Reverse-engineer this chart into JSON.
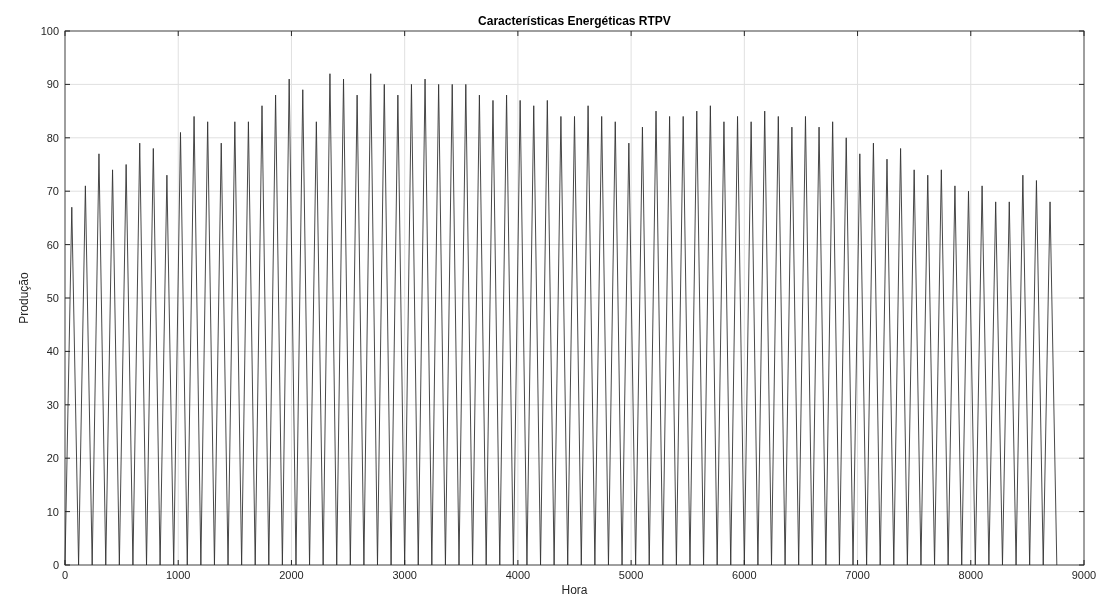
{
  "chart_data": {
    "type": "line",
    "title": "Características Energéticas RTPV",
    "xlabel": "Hora",
    "ylabel": "Produção",
    "xlim": [
      0,
      9000
    ],
    "ylim": [
      0,
      100
    ],
    "xticks": [
      0,
      1000,
      2000,
      3000,
      4000,
      5000,
      6000,
      7000,
      8000,
      9000
    ],
    "yticks": [
      0,
      10,
      20,
      30,
      40,
      50,
      60,
      70,
      80,
      90,
      100
    ],
    "grid": true,
    "series": [
      {
        "color": "#333333",
        "x": [
          0,
          60,
          120,
          180,
          240,
          300,
          360,
          420,
          480,
          540,
          600,
          660,
          720,
          780,
          840,
          900,
          960,
          1020,
          1080,
          1140,
          1200,
          1260,
          1320,
          1380,
          1440,
          1500,
          1560,
          1620,
          1680,
          1740,
          1800,
          1860,
          1920,
          1980,
          2040,
          2100,
          2160,
          2220,
          2280,
          2340,
          2400,
          2460,
          2520,
          2580,
          2640,
          2700,
          2760,
          2820,
          2880,
          2940,
          3000,
          3060,
          3120,
          3180,
          3240,
          3300,
          3360,
          3420,
          3480,
          3540,
          3600,
          3660,
          3720,
          3780,
          3840,
          3900,
          3960,
          4020,
          4080,
          4140,
          4200,
          4260,
          4320,
          4380,
          4440,
          4500,
          4560,
          4620,
          4680,
          4740,
          4800,
          4860,
          4920,
          4980,
          5040,
          5100,
          5160,
          5220,
          5280,
          5340,
          5400,
          5460,
          5520,
          5580,
          5640,
          5700,
          5760,
          5820,
          5880,
          5940,
          6000,
          6060,
          6120,
          6180,
          6240,
          6300,
          6360,
          6420,
          6480,
          6540,
          6600,
          6660,
          6720,
          6780,
          6840,
          6900,
          6960,
          7020,
          7080,
          7140,
          7200,
          7260,
          7320,
          7380,
          7440,
          7500,
          7560,
          7620,
          7680,
          7740,
          7800,
          7860,
          7920,
          7980,
          8040,
          8100,
          8160,
          8220,
          8280,
          8340,
          8400,
          8460,
          8520,
          8580,
          8640,
          8700,
          8760
        ],
        "values": [
          0,
          67,
          0,
          71,
          0,
          77,
          0,
          74,
          0,
          75,
          0,
          79,
          0,
          78,
          0,
          73,
          0,
          81,
          0,
          84,
          0,
          83,
          0,
          79,
          0,
          83,
          0,
          83,
          0,
          86,
          0,
          88,
          0,
          91,
          0,
          89,
          0,
          83,
          0,
          92,
          0,
          91,
          0,
          88,
          0,
          92,
          0,
          90,
          0,
          88,
          0,
          90,
          0,
          91,
          0,
          90,
          0,
          90,
          0,
          90,
          0,
          88,
          0,
          87,
          0,
          88,
          0,
          87,
          0,
          86,
          0,
          87,
          0,
          84,
          0,
          84,
          0,
          86,
          0,
          84,
          0,
          83,
          0,
          79,
          0,
          82,
          0,
          85,
          0,
          84,
          0,
          84,
          0,
          85,
          0,
          86,
          0,
          83,
          0,
          84,
          0,
          83,
          0,
          85,
          0,
          84,
          0,
          82,
          0,
          84,
          0,
          82,
          0,
          83,
          0,
          80,
          0,
          77,
          0,
          79,
          0,
          76,
          0,
          78,
          0,
          74,
          0,
          73,
          0,
          74,
          0,
          71,
          0,
          70,
          0,
          71,
          0,
          68,
          0,
          68,
          0,
          73,
          0,
          72,
          0,
          68,
          0
        ]
      }
    ]
  }
}
